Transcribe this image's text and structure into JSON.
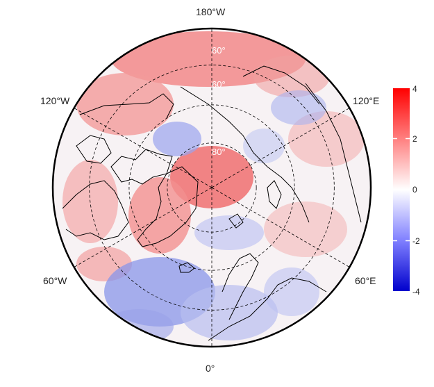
{
  "map": {
    "projection": "north-polar-stereographic",
    "center": "North Pole",
    "longitude_labels": {
      "top": "180°W",
      "upper_left": "120°W",
      "upper_right": "120°E",
      "lower_left": "60°W",
      "lower_right": "60°E",
      "bottom": "0°"
    },
    "latitude_labels": [
      "60°",
      "60°",
      "80°"
    ],
    "graticule_style": "dashed",
    "colors": {
      "negative": "#0000cc",
      "neutral": "#ffffff",
      "positive": "#ff0000",
      "outline": "#000000"
    }
  },
  "colorbar": {
    "ticks": [
      "4",
      "2",
      "0",
      "-2",
      "-4"
    ],
    "min": -4,
    "max": 4
  }
}
